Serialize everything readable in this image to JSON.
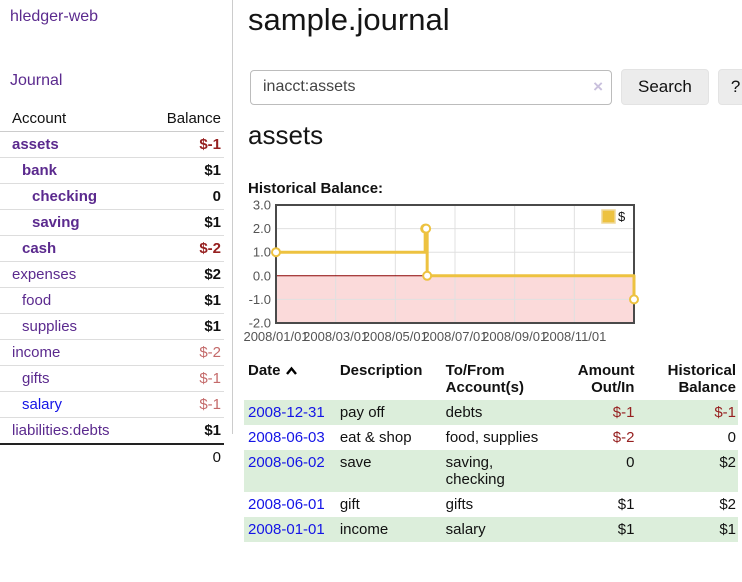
{
  "app": {
    "brand": "hledger-web"
  },
  "sidebar": {
    "journal_link": "Journal",
    "accounts": {
      "header": {
        "account": "Account",
        "balance": "Balance"
      },
      "rows": [
        {
          "name": "assets",
          "balance": "$-1",
          "indent": 1,
          "bold": true,
          "balance_class": "neg-strong"
        },
        {
          "name": "bank",
          "balance": "$1",
          "indent": 2,
          "bold": true,
          "balance_class": "pos"
        },
        {
          "name": "checking",
          "balance": "0",
          "indent": 3,
          "bold": true,
          "balance_class": "pos"
        },
        {
          "name": "saving",
          "balance": "$1",
          "indent": 3,
          "bold": true,
          "balance_class": "pos"
        },
        {
          "name": "cash",
          "balance": "$-2",
          "indent": 2,
          "bold": true,
          "balance_class": "neg-strong"
        },
        {
          "name": "expenses",
          "balance": "$2",
          "indent": 1,
          "bold": false,
          "balance_class": "pos"
        },
        {
          "name": "food",
          "balance": "$1",
          "indent": 2,
          "bold": false,
          "balance_class": "pos"
        },
        {
          "name": "supplies",
          "balance": "$1",
          "indent": 2,
          "bold": false,
          "balance_class": "pos"
        },
        {
          "name": "income",
          "balance": "$-2",
          "indent": 1,
          "bold": false,
          "balance_class": "neg-light"
        },
        {
          "name": "gifts",
          "balance": "$-1",
          "indent": 2,
          "bold": false,
          "balance_class": "neg-light"
        },
        {
          "name": "salary",
          "balance": "$-1",
          "indent": 2,
          "bold": false,
          "balance_class": "neg-light",
          "link_style": "unvisited"
        },
        {
          "name": "liabilities:debts",
          "balance": "$1",
          "indent": 1,
          "bold": false,
          "balance_class": "pos"
        }
      ],
      "total": "0"
    }
  },
  "header": {
    "title": "sample.journal"
  },
  "search": {
    "value": "inacct:assets",
    "clear_icon": "×",
    "button_label": "Search",
    "help_label": "?"
  },
  "account_view": {
    "heading": "assets",
    "chart_title": "Historical Balance:"
  },
  "chart_data": {
    "type": "line",
    "title": "Historical Balance:",
    "xlim": [
      0,
      12
    ],
    "ylim": [
      -2,
      3
    ],
    "grid": true,
    "x_ticks": [
      {
        "x": 0,
        "label": "2008/01/01"
      },
      {
        "x": 2,
        "label": "2008/03/01"
      },
      {
        "x": 4,
        "label": "2008/05/01"
      },
      {
        "x": 6,
        "label": "2008/07/01"
      },
      {
        "x": 8,
        "label": "2008/09/01"
      },
      {
        "x": 10,
        "label": "2008/11/01"
      }
    ],
    "y_ticks": [
      {
        "y": 3,
        "label": "3.0"
      },
      {
        "y": 2,
        "label": "2.0"
      },
      {
        "y": 1,
        "label": "1.0"
      },
      {
        "y": 0,
        "label": "0.0"
      },
      {
        "y": -1,
        "label": "-1.0"
      },
      {
        "y": -2,
        "label": "-2.0"
      }
    ],
    "series": [
      {
        "name": "$",
        "step": true,
        "color": "#edc240",
        "points": [
          {
            "date": "2008-01-01",
            "x": 0,
            "y": 1
          },
          {
            "date": "2008-06-01",
            "x": 5,
            "y": 2
          },
          {
            "date": "2008-06-02",
            "x": 5.033,
            "y": 2
          },
          {
            "date": "2008-06-03",
            "x": 5.067,
            "y": 0
          },
          {
            "date": "2008-12-31",
            "x": 12,
            "y": -1
          }
        ]
      }
    ],
    "legend": {
      "label": "$",
      "position": "top-right"
    },
    "colors": {
      "line": "#edc240",
      "marker_fill": "#ffffff",
      "negative_region": "#fbdada",
      "zero_line": "#8b0000",
      "grid": "#e0e0e0",
      "border": "#4a4a4a",
      "axis_text": "#545454"
    }
  },
  "register": {
    "columns": [
      {
        "label": "Date",
        "sorted": "asc",
        "align": "left"
      },
      {
        "label": "Description",
        "align": "left"
      },
      {
        "label": "To/From\nAccount(s)",
        "align": "left"
      },
      {
        "label": "Amount\nOut/In",
        "align": "right"
      },
      {
        "label": "Historical\nBalance",
        "align": "right"
      }
    ],
    "rows": [
      {
        "date": "2008-12-31",
        "description": "pay off",
        "accounts": "debts",
        "amount": "$-1",
        "amount_neg": true,
        "balance": "$-1",
        "balance_neg": true
      },
      {
        "date": "2008-06-03",
        "description": "eat & shop",
        "accounts": "food, supplies",
        "amount": "$-2",
        "amount_neg": true,
        "balance": "0",
        "balance_neg": false
      },
      {
        "date": "2008-06-02",
        "description": "save",
        "accounts": "saving, checking",
        "amount": "0",
        "amount_neg": false,
        "balance": "$2",
        "balance_neg": false
      },
      {
        "date": "2008-06-01",
        "description": "gift",
        "accounts": "gifts",
        "amount": "$1",
        "amount_neg": false,
        "balance": "$2",
        "balance_neg": false
      },
      {
        "date": "2008-01-01",
        "description": "income",
        "accounts": "salary",
        "amount": "$1",
        "amount_neg": false,
        "balance": "$1",
        "balance_neg": false
      }
    ]
  }
}
